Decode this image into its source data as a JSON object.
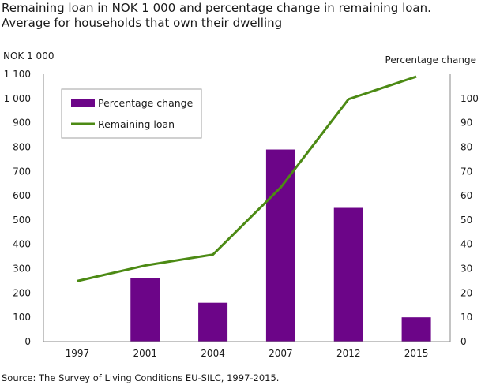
{
  "chart_data": {
    "type": "bar+line",
    "title": "Remaining loan in NOK 1 000 and percentage change in remaining loan. Average for households that own their dwelling",
    "categories": [
      "1997",
      "2001",
      "2004",
      "2007",
      "2012",
      "2015"
    ],
    "series": [
      {
        "name": "Percentage change",
        "type": "bar",
        "axis": "right",
        "values": [
          null,
          26,
          16,
          79,
          55,
          10
        ],
        "color": "#6c0588"
      },
      {
        "name": "Remaining loan",
        "type": "line",
        "axis": "left",
        "values": [
          249,
          313,
          358,
          634,
          997,
          1090
        ],
        "color": "#4c8a14"
      }
    ],
    "ylabel_left": "NOK 1 000",
    "ylabel_right": "Percentage  change",
    "ylim_left": [
      0,
      1100
    ],
    "ylim_right": [
      0,
      110
    ],
    "yticks_left": [
      "0",
      "100",
      "200",
      "300",
      "400",
      "500",
      "600",
      "700",
      "800",
      "900",
      "1 000",
      "1 100"
    ],
    "yticks_right": [
      "0",
      "10",
      "20",
      "30",
      "40",
      "50",
      "60",
      "70",
      "80",
      "90",
      "100"
    ],
    "grid": false,
    "legend_placement": "top-left"
  },
  "source": "Source: The Survey of Living Conditions  EU-SILC, 1997-2015."
}
